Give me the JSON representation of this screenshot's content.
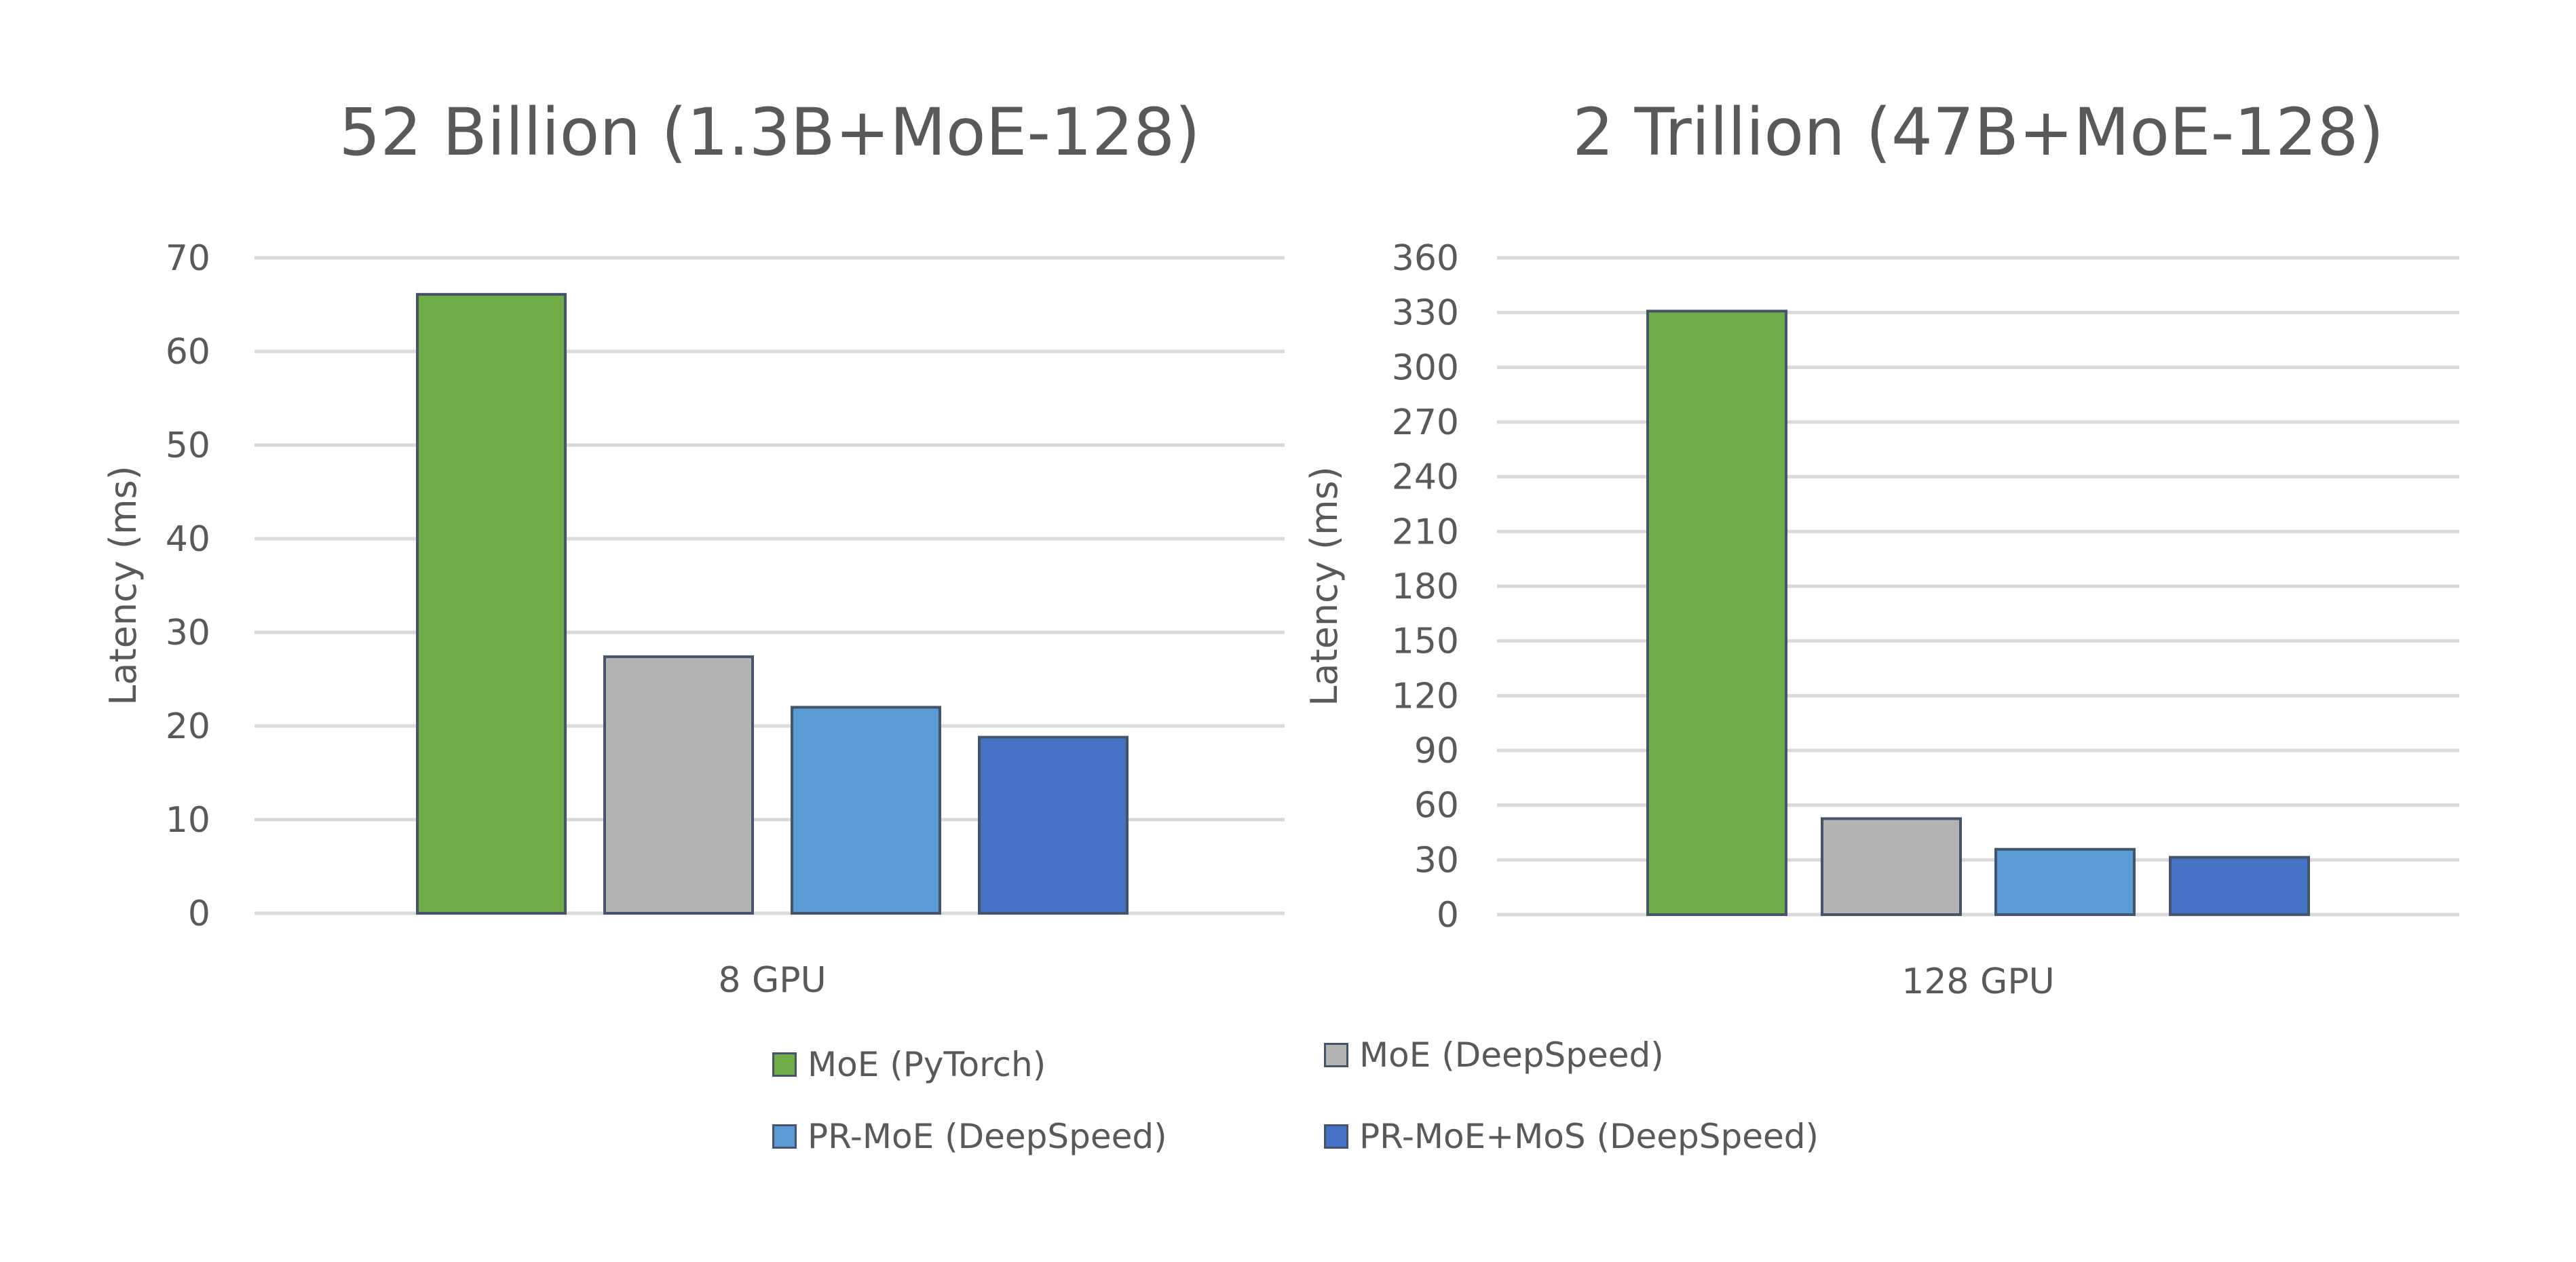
{
  "chart_data": [
    {
      "type": "bar",
      "title": "52 Billion (1.3B+MoE-128)",
      "xlabel": "",
      "ylabel": "Latency (ms)",
      "categories": [
        "8 GPU"
      ],
      "ylim": [
        0,
        70
      ],
      "yticks": [
        0,
        10,
        20,
        30,
        40,
        50,
        60,
        70
      ],
      "grid": true,
      "series": [
        {
          "name": "MoE (PyTorch)",
          "values": [
            66.1
          ]
        },
        {
          "name": "MoE (DeepSpeed)",
          "values": [
            27.4
          ]
        },
        {
          "name": "PR-MoE (DeepSpeed)",
          "values": [
            22.0
          ]
        },
        {
          "name": "PR-MoE+MoS (DeepSpeed)",
          "values": [
            18.8
          ]
        }
      ]
    },
    {
      "type": "bar",
      "title": "2 Trillion (47B+MoE-128)",
      "xlabel": "",
      "ylabel": "Latency (ms)",
      "categories": [
        "128 GPU"
      ],
      "ylim": [
        0,
        360
      ],
      "yticks": [
        0,
        30,
        60,
        90,
        120,
        150,
        180,
        210,
        240,
        270,
        300,
        330,
        360
      ],
      "grid": true,
      "series": [
        {
          "name": "MoE (PyTorch)",
          "values": [
            330.8
          ]
        },
        {
          "name": "MoE (DeepSpeed)",
          "values": [
            52.6
          ]
        },
        {
          "name": "PR-MoE (DeepSpeed)",
          "values": [
            35.8
          ]
        },
        {
          "name": "PR-MoE+MoS (DeepSpeed)",
          "values": [
            31.4
          ]
        }
      ]
    }
  ],
  "legend": {
    "placement": "bottom",
    "items": [
      {
        "label": "MoE (PyTorch)",
        "color": "#70ad47"
      },
      {
        "label": "MoE (DeepSpeed)",
        "color": "#b3b3b3"
      },
      {
        "label": "PR-MoE (DeepSpeed)",
        "color": "#5b9bd5"
      },
      {
        "label": "PR-MoE+MoS (DeepSpeed)",
        "color": "#4472c4"
      }
    ]
  },
  "colors": {
    "bar_border": "#44546a",
    "grid": "#d9d9d9",
    "text": "#595959"
  }
}
